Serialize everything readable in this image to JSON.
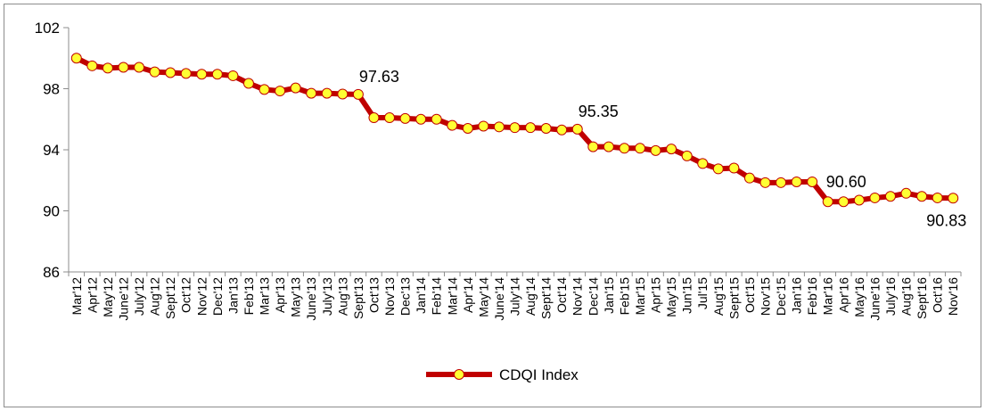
{
  "chart_data": {
    "type": "line",
    "title": "",
    "xlabel": "",
    "ylabel": "",
    "ylim": [
      86,
      102
    ],
    "yticks": [
      86,
      90,
      94,
      98,
      102
    ],
    "grid": false,
    "legend_position": "bottom-center",
    "series_color": "#c00000",
    "marker_color": "#ffff33",
    "categories": [
      "Mar'12",
      "Apr'12",
      "May'12",
      "June'12",
      "July'12",
      "Aug'12",
      "Sept'12",
      "Oct'12",
      "Nov'12",
      "Dec'12",
      "Jan'13",
      "Feb'13",
      "Mar'13",
      "Apr'13",
      "May'13",
      "June'13",
      "July'13",
      "Aug'13",
      "Sept'13",
      "Oct'13",
      "Nov'13",
      "Dec'13",
      "Jan'14",
      "Feb'14",
      "Mar'14",
      "Apr'14",
      "May'14",
      "June'14",
      "July'14",
      "Aug'14",
      "Sept'14",
      "Oct'14",
      "Nov'14",
      "Dec'14",
      "Jan'15",
      "Feb'15",
      "Mar'15",
      "Apr'15",
      "May'15",
      "Jun'15",
      "Jul'15",
      "Aug'15",
      "Sept'15",
      "Oct'15",
      "Nov'15",
      "Dec'15",
      "Jan'16",
      "Feb'16",
      "Mar'16",
      "Apr'16",
      "May'16",
      "June'16",
      "July'16",
      "Aug'16",
      "Sept'16",
      "Oct'16",
      "Nov'16"
    ],
    "series": [
      {
        "name": "CDQI Index",
        "values": [
          100.0,
          99.5,
          99.35,
          99.4,
          99.4,
          99.1,
          99.05,
          99.0,
          98.95,
          98.95,
          98.85,
          98.35,
          97.95,
          97.85,
          98.05,
          97.7,
          97.7,
          97.65,
          97.63,
          96.1,
          96.1,
          96.05,
          96.0,
          96.0,
          95.6,
          95.4,
          95.55,
          95.5,
          95.45,
          95.45,
          95.4,
          95.3,
          95.35,
          94.2,
          94.2,
          94.1,
          94.1,
          93.95,
          94.05,
          93.6,
          93.1,
          92.75,
          92.8,
          92.15,
          91.85,
          91.85,
          91.9,
          91.9,
          90.6,
          90.6,
          90.7,
          90.85,
          90.95,
          91.15,
          90.95,
          90.85,
          90.83
        ]
      }
    ],
    "annotations": [
      {
        "category": "Sept'13",
        "text": "97.63"
      },
      {
        "category": "Nov'14",
        "text": "95.35"
      },
      {
        "category": "Mar'16",
        "text": "90.60"
      },
      {
        "category": "Nov'16",
        "text": "90.83"
      }
    ]
  }
}
